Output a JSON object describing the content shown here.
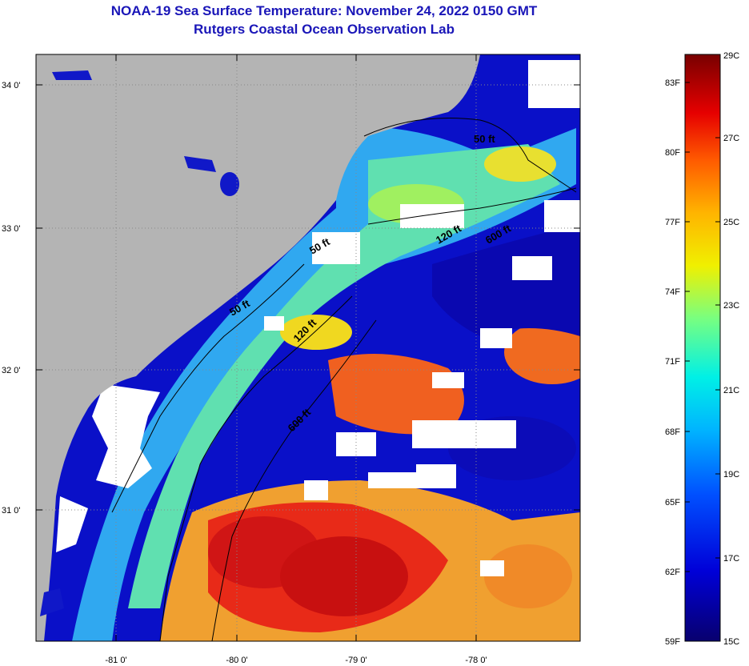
{
  "header": {
    "title": "NOAA-19 Sea Surface Temperature:  November 24, 2022 0150 GMT",
    "subtitle": "Rutgers Coastal Ocean Observation Lab"
  },
  "map": {
    "lat_ticks": [
      "34 0'",
      "33 0'",
      "32 0'",
      "31 0'"
    ],
    "lon_ticks": [
      "-81 0'",
      "-80 0'",
      "-79 0'",
      "-78 0'"
    ],
    "contours": [
      "50 ft",
      "120 ft",
      "600 ft",
      "120 ft",
      "600 ft",
      "50 ft",
      "50 ft"
    ]
  },
  "colorbar": {
    "f_labels": [
      "83F",
      "80F",
      "77F",
      "74F",
      "71F",
      "68F",
      "65F",
      "62F",
      "59F"
    ],
    "c_labels": [
      "29C",
      "27C",
      "25C",
      "23C",
      "21C",
      "19C",
      "17C",
      "15C"
    ]
  },
  "colors": {
    "land": "#b4b4b4",
    "cloud": "#ffffff",
    "title": "#1a16b8"
  }
}
